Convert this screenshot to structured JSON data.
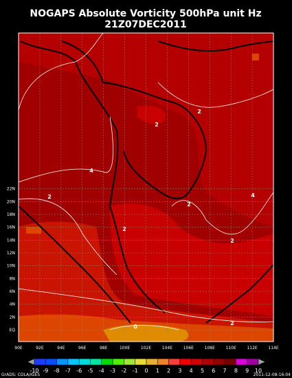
{
  "title": "NOGAPS Absolute Vorticity 500hPa unit Hz",
  "subtitle": "21Z07DEC2011",
  "lat_labels": [
    "EQ",
    "2N",
    "4N",
    "6N",
    "8N",
    "10N",
    "12N",
    "14N",
    "16N",
    "18N",
    "20N",
    "22N"
  ],
  "lon_labels": [
    "90E",
    "92E",
    "94E",
    "96E",
    "98E",
    "100E",
    "102E",
    "104E",
    "106E",
    "108E",
    "110E",
    "112E",
    "114E"
  ],
  "contour_labels": [
    "2",
    "2",
    "4",
    "2",
    "2",
    "4",
    "2",
    "2",
    "2",
    "0"
  ],
  "colorbar": {
    "labels": [
      -10,
      -9,
      -8,
      -7,
      -6,
      -5,
      -4,
      -3,
      -2,
      -1,
      0,
      1,
      2,
      3,
      4,
      5,
      6,
      7,
      8,
      9,
      10
    ],
    "colors": [
      "#a0a0a0",
      "#1e3cff",
      "#0050ff",
      "#0096ff",
      "#00c8ff",
      "#00dcdc",
      "#00e6a0",
      "#00dc00",
      "#50f000",
      "#a0e632",
      "#e6dc32",
      "#e6af2d",
      "#f08228",
      "#fa3c3c",
      "#f00000",
      "#d20000",
      "#b40000",
      "#960000",
      "#780000",
      "#dc00dc",
      "#a000a0",
      "#a0a0a0"
    ]
  },
  "footer_left": "GrADS: COLA/IGES",
  "footer_right": "2011-12-08-16:04"
}
